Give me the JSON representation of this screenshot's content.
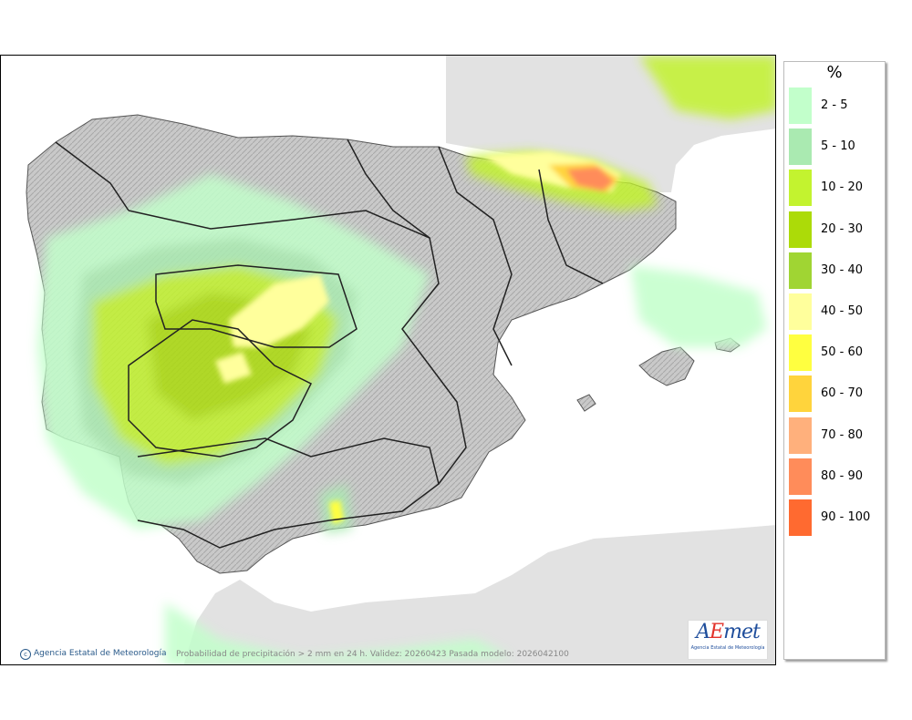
{
  "legend": {
    "title": "%",
    "items": [
      {
        "label": "2 - 5",
        "color": "#c2ffcb"
      },
      {
        "label": "5 - 10",
        "color": "#aaeab1"
      },
      {
        "label": "10 - 20",
        "color": "#c3f32f"
      },
      {
        "label": "20 - 30",
        "color": "#acdb08"
      },
      {
        "label": "30 - 40",
        "color": "#a0d533"
      },
      {
        "label": "40 - 50",
        "color": "#ffff9c"
      },
      {
        "label": "50 - 60",
        "color": "#ffff40"
      },
      {
        "label": "60 - 70",
        "color": "#ffd43c"
      },
      {
        "label": "70 - 80",
        "color": "#ffb07c"
      },
      {
        "label": "80 - 90",
        "color": "#ff8c5a"
      },
      {
        "label": "90 - 100",
        "color": "#ff6a30"
      }
    ]
  },
  "footer": {
    "agency_credit": "Agencia Estatal de Meteorología",
    "caption": "Probabilidad de precipitación > 2 mm en 24 h. Validez: 20260423 Pasada modelo: 2026042100"
  },
  "logo": {
    "text": "AEmet",
    "subtitle": "Agencia Estatal de Meteorología"
  }
}
